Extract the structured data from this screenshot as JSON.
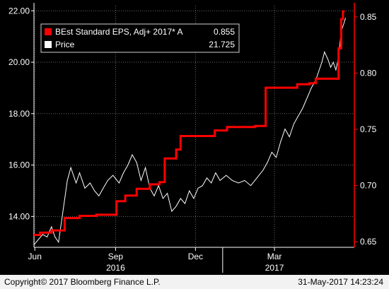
{
  "chart_data": {
    "type": "line",
    "grid": true,
    "legend_position": "top-left",
    "left_axis": {
      "range": [
        12.8,
        22.2
      ],
      "ticks": [
        "14.00",
        "16.00",
        "18.00",
        "20.00",
        "22.00"
      ],
      "tick_values": [
        14,
        16,
        18,
        20,
        22
      ]
    },
    "right_axis": {
      "range": [
        0.645,
        0.86
      ],
      "ticks": [
        "0.65",
        "0.70",
        "0.75",
        "0.80",
        "0.85"
      ],
      "tick_values": [
        0.65,
        0.7,
        0.75,
        0.8,
        0.85
      ]
    },
    "x_range": [
      "2016-05-31",
      "2017-05-31"
    ],
    "x_ticks": [
      {
        "label": "Jun",
        "date": "2016-06-01"
      },
      {
        "label": "Sep",
        "date": "2016-09-01"
      },
      {
        "label": "Dec",
        "date": "2016-12-01"
      },
      {
        "label": "Mar",
        "date": "2017-03-01"
      }
    ],
    "year_labels": [
      {
        "label": "2016",
        "date": "2016-09-01"
      },
      {
        "label": "2017",
        "date": "2017-03-01"
      }
    ],
    "series": [
      {
        "name": "BEst Standard EPS, Adj+ 2017* A",
        "last_value": "0.855",
        "axis": "right",
        "color": "#ff0000",
        "type": "step",
        "points": [
          [
            "2016-05-31",
            0.656
          ],
          [
            "2016-06-07",
            0.656
          ],
          [
            "2016-06-07",
            0.658
          ],
          [
            "2016-06-20",
            0.658
          ],
          [
            "2016-06-20",
            0.66
          ],
          [
            "2016-07-05",
            0.66
          ],
          [
            "2016-07-05",
            0.671
          ],
          [
            "2016-07-22",
            0.671
          ],
          [
            "2016-07-22",
            0.673
          ],
          [
            "2016-08-10",
            0.673
          ],
          [
            "2016-08-10",
            0.674
          ],
          [
            "2016-09-02",
            0.674
          ],
          [
            "2016-09-02",
            0.686
          ],
          [
            "2016-09-12",
            0.686
          ],
          [
            "2016-09-12",
            0.691
          ],
          [
            "2016-09-25",
            0.691
          ],
          [
            "2016-09-25",
            0.697
          ],
          [
            "2016-10-10",
            0.697
          ],
          [
            "2016-10-10",
            0.701
          ],
          [
            "2016-10-21",
            0.701
          ],
          [
            "2016-10-21",
            0.703
          ],
          [
            "2016-10-27",
            0.703
          ],
          [
            "2016-10-27",
            0.724
          ],
          [
            "2016-11-09",
            0.724
          ],
          [
            "2016-11-09",
            0.732
          ],
          [
            "2016-11-14",
            0.732
          ],
          [
            "2016-11-14",
            0.744
          ],
          [
            "2016-12-23",
            0.744
          ],
          [
            "2016-12-23",
            0.749
          ],
          [
            "2017-01-06",
            0.749
          ],
          [
            "2017-01-06",
            0.752
          ],
          [
            "2017-02-07",
            0.752
          ],
          [
            "2017-02-07",
            0.753
          ],
          [
            "2017-02-19",
            0.753
          ],
          [
            "2017-02-19",
            0.787
          ],
          [
            "2017-03-27",
            0.787
          ],
          [
            "2017-03-27",
            0.79
          ],
          [
            "2017-04-10",
            0.79
          ],
          [
            "2017-04-10",
            0.791
          ],
          [
            "2017-04-17",
            0.791
          ],
          [
            "2017-04-17",
            0.795
          ],
          [
            "2017-05-13",
            0.795
          ],
          [
            "2017-05-13",
            0.822
          ],
          [
            "2017-05-16",
            0.822
          ],
          [
            "2017-05-16",
            0.848
          ],
          [
            "2017-05-18",
            0.848
          ],
          [
            "2017-05-18",
            0.855
          ],
          [
            "2017-05-20",
            0.855
          ]
        ]
      },
      {
        "name": "Price",
        "last_value": "21.725",
        "axis": "left",
        "color": "#ffffff",
        "points": [
          [
            "2016-05-31",
            12.9
          ],
          [
            "2016-06-05",
            13.1
          ],
          [
            "2016-06-10",
            13.3
          ],
          [
            "2016-06-15",
            13.2
          ],
          [
            "2016-06-20",
            13.6
          ],
          [
            "2016-06-24",
            13.2
          ],
          [
            "2016-06-28",
            13.0
          ],
          [
            "2016-07-03",
            14.2
          ],
          [
            "2016-07-08",
            15.4
          ],
          [
            "2016-07-12",
            15.9
          ],
          [
            "2016-07-18",
            15.3
          ],
          [
            "2016-07-22",
            15.7
          ],
          [
            "2016-07-28",
            15.1
          ],
          [
            "2016-08-03",
            15.3
          ],
          [
            "2016-08-08",
            15.0
          ],
          [
            "2016-08-13",
            14.8
          ],
          [
            "2016-08-18",
            15.1
          ],
          [
            "2016-08-23",
            15.4
          ],
          [
            "2016-08-29",
            15.6
          ],
          [
            "2016-09-05",
            15.3
          ],
          [
            "2016-09-10",
            15.7
          ],
          [
            "2016-09-15",
            16.0
          ],
          [
            "2016-09-20",
            16.4
          ],
          [
            "2016-09-25",
            16.1
          ],
          [
            "2016-09-30",
            15.4
          ],
          [
            "2016-10-05",
            15.9
          ],
          [
            "2016-10-10",
            15.1
          ],
          [
            "2016-10-15",
            14.8
          ],
          [
            "2016-10-20",
            15.2
          ],
          [
            "2016-10-25",
            14.7
          ],
          [
            "2016-10-30",
            14.9
          ],
          [
            "2016-11-04",
            14.2
          ],
          [
            "2016-11-09",
            14.4
          ],
          [
            "2016-11-14",
            14.7
          ],
          [
            "2016-11-19",
            14.5
          ],
          [
            "2016-11-24",
            15.0
          ],
          [
            "2016-11-29",
            14.7
          ],
          [
            "2016-12-04",
            15.1
          ],
          [
            "2016-12-09",
            15.2
          ],
          [
            "2016-12-14",
            15.5
          ],
          [
            "2016-12-19",
            15.3
          ],
          [
            "2016-12-24",
            15.7
          ],
          [
            "2016-12-29",
            15.4
          ],
          [
            "2017-01-05",
            15.6
          ],
          [
            "2017-01-12",
            15.4
          ],
          [
            "2017-01-19",
            15.3
          ],
          [
            "2017-01-26",
            15.4
          ],
          [
            "2017-02-02",
            15.2
          ],
          [
            "2017-02-09",
            15.5
          ],
          [
            "2017-02-16",
            15.8
          ],
          [
            "2017-02-21",
            16.1
          ],
          [
            "2017-02-26",
            16.5
          ],
          [
            "2017-03-03",
            16.3
          ],
          [
            "2017-03-08",
            16.9
          ],
          [
            "2017-03-13",
            17.4
          ],
          [
            "2017-03-18",
            17.1
          ],
          [
            "2017-03-23",
            17.6
          ],
          [
            "2017-03-28",
            17.9
          ],
          [
            "2017-04-02",
            18.2
          ],
          [
            "2017-04-07",
            18.6
          ],
          [
            "2017-04-12",
            19.0
          ],
          [
            "2017-04-17",
            19.3
          ],
          [
            "2017-04-20",
            19.6
          ],
          [
            "2017-04-24",
            20.0
          ],
          [
            "2017-04-27",
            20.4
          ],
          [
            "2017-05-01",
            20.1
          ],
          [
            "2017-05-04",
            19.8
          ],
          [
            "2017-05-07",
            20.0
          ],
          [
            "2017-05-10",
            19.7
          ],
          [
            "2017-05-13",
            20.2
          ],
          [
            "2017-05-16",
            21.2
          ],
          [
            "2017-05-19",
            21.5
          ],
          [
            "2017-05-21",
            21.725
          ]
        ]
      }
    ]
  },
  "footer": {
    "copyright": "Copyright© 2017 Bloomberg Finance L.P.",
    "timestamp": "31-May-2017 14:23:24"
  }
}
